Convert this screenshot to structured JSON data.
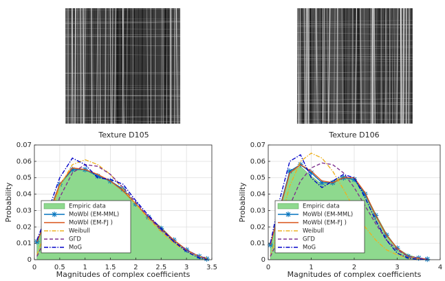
{
  "chart_data": [
    {
      "type": "line",
      "title": "Texture D105",
      "xlabel": "Magnitudes of complex coefficients",
      "ylabel": "Probability",
      "x": [
        0.05,
        0.25,
        0.5,
        0.75,
        1.0,
        1.25,
        1.5,
        1.75,
        2.0,
        2.25,
        2.5,
        2.75,
        3.0,
        3.25,
        3.4
      ],
      "series": [
        {
          "name": "Empiric data",
          "color": "#8ed98e",
          "style": "area",
          "values": [
            0.011,
            0.025,
            0.045,
            0.056,
            0.055,
            0.051,
            0.048,
            0.043,
            0.034,
            0.026,
            0.02,
            0.012,
            0.006,
            0.002,
            0.0005
          ]
        },
        {
          "name": "MoWbl (EM-MML)",
          "color": "#0072bd",
          "style": "solid",
          "marker": "asterisk",
          "values": [
            0.011,
            0.026,
            0.046,
            0.055,
            0.055,
            0.051,
            0.048,
            0.043,
            0.034,
            0.026,
            0.019,
            0.012,
            0.006,
            0.002,
            0.0005
          ]
        },
        {
          "name": "MoWbl (EM-FJ )",
          "color": "#d95319",
          "style": "solid",
          "values": [
            0.011,
            0.025,
            0.046,
            0.056,
            0.055,
            0.052,
            0.048,
            0.042,
            0.034,
            0.026,
            0.019,
            0.012,
            0.006,
            0.002,
            0.0006
          ]
        },
        {
          "name": "Weibull",
          "color": "#edb120",
          "style": "dashdot",
          "values": [
            0.003,
            0.02,
            0.045,
            0.058,
            0.061,
            0.058,
            0.052,
            0.043,
            0.034,
            0.025,
            0.017,
            0.01,
            0.005,
            0.002,
            0.001
          ]
        },
        {
          "name": "GΓD",
          "color": "#7e2f8e",
          "style": "dashed",
          "values": [
            0.002,
            0.015,
            0.038,
            0.053,
            0.058,
            0.057,
            0.052,
            0.044,
            0.035,
            0.026,
            0.018,
            0.011,
            0.006,
            0.002,
            0.001
          ]
        },
        {
          "name": "MoG",
          "color": "#0000c8",
          "style": "dashdot",
          "values": [
            0.012,
            0.028,
            0.05,
            0.062,
            0.058,
            0.05,
            0.049,
            0.046,
            0.036,
            0.027,
            0.019,
            0.011,
            0.005,
            0.001,
            0.0002
          ]
        }
      ],
      "xlim": [
        0,
        3.5
      ],
      "xticks": [
        0,
        0.5,
        1,
        1.5,
        2,
        2.5,
        3,
        3.5
      ],
      "ylim": [
        0,
        0.07
      ],
      "yticks": [
        0,
        0.01,
        0.02,
        0.03,
        0.04,
        0.05,
        0.06,
        0.07
      ],
      "grid": true,
      "legend": "lower left"
    },
    {
      "type": "line",
      "title": "Texture D106",
      "xlabel": "Magnitudes of complex coefficients",
      "ylabel": "Probability",
      "x": [
        0.05,
        0.25,
        0.5,
        0.75,
        1.0,
        1.25,
        1.5,
        1.75,
        2.0,
        2.25,
        2.5,
        2.75,
        3.0,
        3.25,
        3.5,
        3.7
      ],
      "series": [
        {
          "name": "Empiric data",
          "color": "#8ed98e",
          "style": "area",
          "values": [
            0.009,
            0.03,
            0.053,
            0.057,
            0.051,
            0.046,
            0.048,
            0.051,
            0.049,
            0.041,
            0.028,
            0.016,
            0.007,
            0.003,
            0.001,
            0.0003
          ]
        },
        {
          "name": "MoWbl (EM-MML)",
          "color": "#0072bd",
          "style": "solid",
          "marker": "asterisk",
          "values": [
            0.009,
            0.03,
            0.054,
            0.058,
            0.053,
            0.047,
            0.047,
            0.05,
            0.049,
            0.04,
            0.027,
            0.015,
            0.007,
            0.002,
            0.001,
            0.0003
          ]
        },
        {
          "name": "MoWbl (EM-FJ )",
          "color": "#d95319",
          "style": "solid",
          "values": [
            0.009,
            0.029,
            0.053,
            0.058,
            0.054,
            0.048,
            0.047,
            0.05,
            0.05,
            0.041,
            0.027,
            0.015,
            0.007,
            0.002,
            0.001,
            0.0003
          ]
        },
        {
          "name": "Weibull",
          "color": "#edb120",
          "style": "dashdot",
          "values": [
            0.002,
            0.02,
            0.045,
            0.06,
            0.065,
            0.062,
            0.054,
            0.043,
            0.031,
            0.02,
            0.012,
            0.006,
            0.003,
            0.001,
            0.0004,
            0.0001
          ]
        },
        {
          "name": "GΓD",
          "color": "#7e2f8e",
          "style": "dashed",
          "values": [
            0.002,
            0.013,
            0.033,
            0.048,
            0.056,
            0.059,
            0.058,
            0.053,
            0.044,
            0.033,
            0.022,
            0.012,
            0.006,
            0.002,
            0.001,
            0.0003
          ]
        },
        {
          "name": "MoG",
          "color": "#0000c8",
          "style": "dashdot",
          "values": [
            0.01,
            0.035,
            0.06,
            0.064,
            0.05,
            0.044,
            0.048,
            0.052,
            0.05,
            0.038,
            0.024,
            0.012,
            0.004,
            0.001,
            0.0002,
            0.0
          ]
        }
      ],
      "xlim": [
        0,
        4
      ],
      "xticks": [
        0,
        1,
        2,
        3,
        4
      ],
      "ylim": [
        0,
        0.07
      ],
      "yticks": [
        0,
        0.01,
        0.02,
        0.03,
        0.04,
        0.05,
        0.06,
        0.07
      ],
      "grid": true,
      "legend": "lower left"
    }
  ]
}
